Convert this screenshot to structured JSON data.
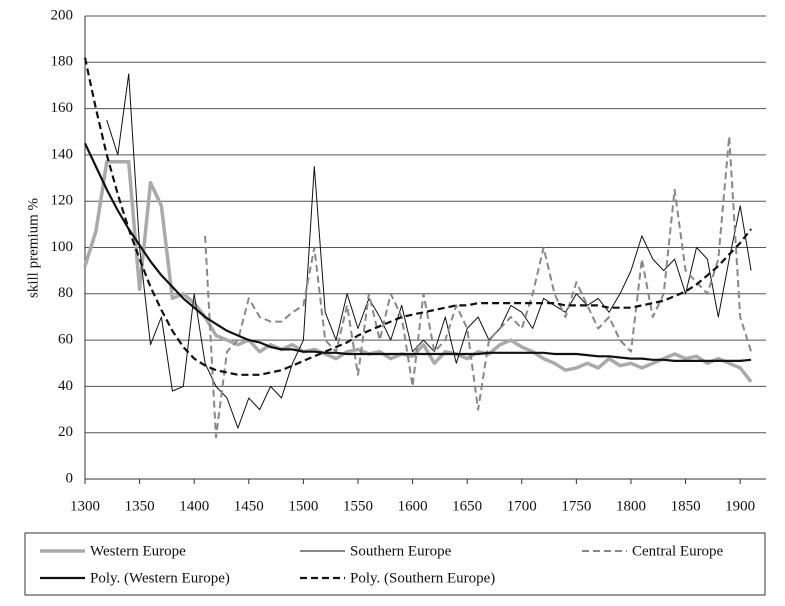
{
  "chart_data": {
    "type": "line",
    "y_label": "skill premium %",
    "x": [
      1300,
      1310,
      1320,
      1330,
      1340,
      1350,
      1360,
      1370,
      1380,
      1390,
      1400,
      1410,
      1420,
      1430,
      1440,
      1450,
      1460,
      1470,
      1480,
      1490,
      1500,
      1510,
      1520,
      1530,
      1540,
      1550,
      1560,
      1570,
      1580,
      1590,
      1600,
      1610,
      1620,
      1630,
      1640,
      1650,
      1660,
      1670,
      1680,
      1690,
      1700,
      1710,
      1720,
      1730,
      1740,
      1750,
      1760,
      1770,
      1780,
      1790,
      1800,
      1810,
      1820,
      1830,
      1840,
      1850,
      1860,
      1870,
      1880,
      1890,
      1900,
      1910
    ],
    "series": [
      {
        "name": "Western Europe",
        "color": "#aaaaaa",
        "width": 3.5,
        "dash": "solid",
        "values": [
          92,
          107,
          137,
          137,
          137,
          82,
          128,
          118,
          78,
          80,
          76,
          70,
          62,
          60,
          58,
          60,
          55,
          58,
          56,
          58,
          55,
          56,
          54,
          52,
          55,
          56,
          54,
          55,
          52,
          54,
          53,
          58,
          50,
          55,
          54,
          52,
          55,
          54,
          58,
          60,
          57,
          55,
          52,
          50,
          47,
          48,
          50,
          48,
          52,
          49,
          50,
          48,
          50,
          52,
          54,
          52,
          53,
          50,
          52,
          50,
          48,
          42
        ]
      },
      {
        "name": "Southern Europe",
        "color": "#111111",
        "width": 1,
        "dash": "solid",
        "values": [
          null,
          null,
          155,
          140,
          175,
          100,
          58,
          70,
          38,
          40,
          80,
          50,
          40,
          35,
          22,
          35,
          30,
          40,
          35,
          50,
          60,
          135,
          72,
          60,
          80,
          65,
          78,
          70,
          60,
          75,
          55,
          60,
          55,
          70,
          50,
          65,
          70,
          60,
          65,
          75,
          72,
          65,
          78,
          75,
          72,
          80,
          75,
          78,
          72,
          80,
          90,
          105,
          95,
          90,
          95,
          80,
          100,
          95,
          70,
          95,
          118,
          90
        ]
      },
      {
        "name": "Central Europe",
        "color": "#888888",
        "width": 2,
        "dash": "dashed",
        "values": [
          null,
          null,
          null,
          null,
          null,
          null,
          null,
          null,
          null,
          null,
          null,
          105,
          18,
          55,
          60,
          78,
          70,
          68,
          68,
          72,
          75,
          100,
          60,
          55,
          75,
          45,
          80,
          60,
          80,
          70,
          40,
          80,
          55,
          60,
          75,
          65,
          30,
          60,
          65,
          70,
          65,
          80,
          100,
          80,
          70,
          85,
          75,
          65,
          70,
          60,
          55,
          95,
          70,
          80,
          125,
          90,
          85,
          80,
          95,
          148,
          70,
          55
        ]
      },
      {
        "name": "Poly. (Western Europe)",
        "color": "#111111",
        "width": 2.2,
        "dash": "solid",
        "values": [
          145,
          135,
          125,
          116,
          108,
          101,
          94,
          88,
          83,
          78,
          74,
          70,
          67,
          64,
          62,
          60,
          59,
          57,
          56,
          56,
          55,
          55,
          54.5,
          54.5,
          54,
          54,
          54,
          54,
          54,
          54,
          54,
          54,
          54,
          54,
          54,
          54,
          54,
          54.5,
          54.5,
          54.5,
          54.5,
          54.5,
          54.5,
          54,
          54,
          54,
          53.5,
          53,
          53,
          52.5,
          52,
          52,
          51.5,
          51.5,
          51,
          51,
          51,
          51,
          51,
          51,
          51,
          51.5
        ]
      },
      {
        "name": "Poly. (Southern Europe)",
        "color": "#111111",
        "width": 2.2,
        "dash": "dashed",
        "values": [
          182,
          160,
          140,
          123,
          108,
          95,
          83,
          73,
          64,
          57,
          52,
          49,
          47,
          46,
          45,
          45,
          45,
          46,
          47,
          49,
          51,
          53,
          55,
          57,
          59,
          62,
          64,
          66,
          68,
          70,
          71,
          72,
          73,
          74,
          75,
          75,
          76,
          76,
          76,
          76,
          76,
          76,
          76,
          76,
          75,
          75,
          75,
          75,
          74,
          74,
          74,
          75,
          76,
          77,
          79,
          81,
          84,
          88,
          92,
          97,
          102,
          108
        ]
      }
    ],
    "xlim": [
      1300,
      1920
    ],
    "ylim": [
      0,
      200
    ],
    "xticks": [
      1300,
      1350,
      1400,
      1450,
      1500,
      1550,
      1600,
      1650,
      1700,
      1750,
      1800,
      1850,
      1900
    ],
    "yticks": [
      0,
      20,
      40,
      60,
      80,
      100,
      120,
      140,
      160,
      180,
      200
    ],
    "grid": true,
    "legend": "bottom"
  }
}
